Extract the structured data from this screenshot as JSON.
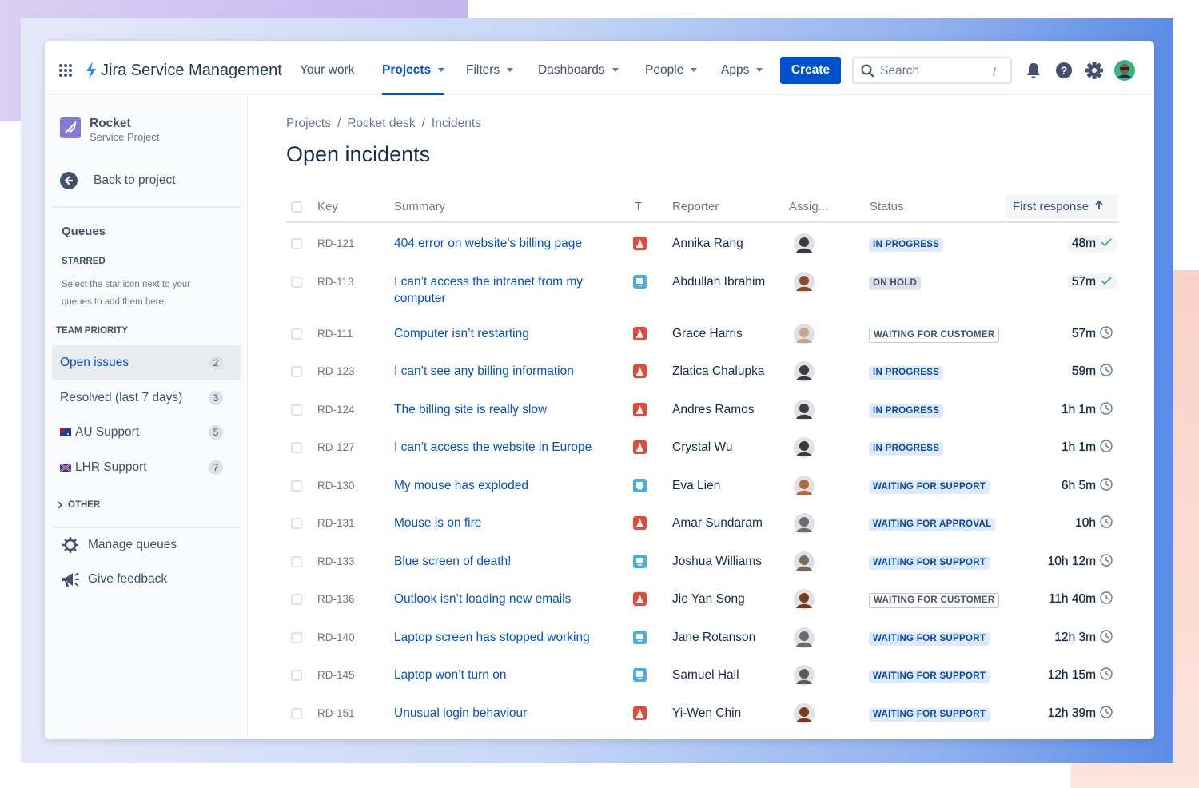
{
  "nav": {
    "product": "Jira Service Management",
    "items": [
      {
        "label": "Your work",
        "dropdown": false
      },
      {
        "label": "Projects",
        "dropdown": true
      },
      {
        "label": "Filters",
        "dropdown": true
      },
      {
        "label": "Dashboards",
        "dropdown": true
      },
      {
        "label": "People",
        "dropdown": true
      },
      {
        "label": "Apps",
        "dropdown": true
      }
    ],
    "active_index": 1,
    "create": "Create",
    "search": "Search",
    "search_shortcut": "/"
  },
  "sidebar": {
    "project_name": "Rocket",
    "project_type": "Service Project",
    "back": "Back to project",
    "queues_title": "Queues",
    "starred_title": "STARRED",
    "starred_hint": "Select the star icon next to your queues to add them here.",
    "team_priority_title": "TEAM PRIORITY",
    "queues": [
      {
        "name": "Open issues",
        "count": 2,
        "flag": false
      },
      {
        "name": "Resolved (last 7 days)",
        "count": 3,
        "flag": false
      },
      {
        "name": "AU Support",
        "count": 5,
        "flag": true
      },
      {
        "name": "LHR Support",
        "count": 7,
        "flag": true
      }
    ],
    "selected_index": 0,
    "other_title": "OTHER",
    "manage": "Manage queues",
    "feedback": "Give feedback"
  },
  "breadcrumbs": [
    "Projects",
    "Rocket desk",
    "Incidents"
  ],
  "page_title": "Open incidents",
  "table": {
    "columns": [
      "Key",
      "Summary",
      "T",
      "Reporter",
      "Assig...",
      "Status",
      "First response"
    ],
    "rows": [
      {
        "key": "RD-121",
        "summary": "404 error on website’s billing page",
        "type_color": "#e5493a",
        "reporter": "Annika Rang",
        "status": "IN PROGRESS",
        "status_colors": [
          "#deebff",
          "#0747a6"
        ],
        "first_response": "48m",
        "met": true
      },
      {
        "key": "RD-113",
        "summary": "I can’t access the intranet from my computer",
        "type_color": "#4bade8",
        "reporter": "Abdullah Ibrahim",
        "status": "ON HOLD",
        "status_colors": [
          "#dfe1e6",
          "#42526e"
        ],
        "first_response": "57m",
        "met": true
      },
      {
        "key": "RD-111",
        "summary": "Computer isn’t restarting",
        "type_color": "#e5493a",
        "reporter": "Grace Harris",
        "status": "WAITING FOR CUSTOMER",
        "status_colors": [
          "#ffffff",
          "#42526e"
        ],
        "first_response": "57m",
        "met": false
      },
      {
        "key": "RD-123",
        "summary": "I can’t see any billing information",
        "type_color": "#e5493a",
        "reporter": "Zlatica Chalupka",
        "status": "IN PROGRESS",
        "status_colors": [
          "#deebff",
          "#0747a6"
        ],
        "first_response": "59m",
        "met": false
      },
      {
        "key": "RD-124",
        "summary": "The billing site is really slow",
        "type_color": "#e5493a",
        "reporter": "Andres Ramos",
        "status": "IN PROGRESS",
        "status_colors": [
          "#deebff",
          "#0747a6"
        ],
        "first_response": "1h 1m",
        "met": false
      },
      {
        "key": "RD-127",
        "summary": "I can’t access the website in Europe",
        "type_color": "#e5493a",
        "reporter": "Crystal Wu",
        "status": "IN PROGRESS",
        "status_colors": [
          "#deebff",
          "#0747a6"
        ],
        "first_response": "1h 1m",
        "met": false
      },
      {
        "key": "RD-130",
        "summary": "My mouse has exploded",
        "type_color": "#4bade8",
        "reporter": "Eva Lien",
        "status": "WAITING FOR SUPPORT",
        "status_colors": [
          "#deebff",
          "#0747a6"
        ],
        "first_response": "6h 5m",
        "met": false
      },
      {
        "key": "RD-131",
        "summary": "Mouse is on fire",
        "type_color": "#e5493a",
        "reporter": "Amar Sundaram",
        "status": "WAITING FOR APPROVAL",
        "status_colors": [
          "#deebff",
          "#0747a6"
        ],
        "first_response": "10h",
        "met": false
      },
      {
        "key": "RD-133",
        "summary": "Blue screen of death!",
        "type_color": "#4bade8",
        "reporter": "Joshua Williams",
        "status": "WAITING FOR SUPPORT",
        "status_colors": [
          "#deebff",
          "#0747a6"
        ],
        "first_response": "10h 12m",
        "met": false
      },
      {
        "key": "RD-136",
        "summary": "Outlook isn’t loading new emails",
        "type_color": "#e5493a",
        "reporter": "Jie Yan Song",
        "status": "WAITING FOR CUSTOMER",
        "status_colors": [
          "#ffffff",
          "#42526e"
        ],
        "first_response": "11h 40m",
        "met": false
      },
      {
        "key": "RD-140",
        "summary": "Laptop screen has stopped working",
        "type_color": "#4bade8",
        "reporter": "Jane Rotanson",
        "status": "WAITING FOR SUPPORT",
        "status_colors": [
          "#deebff",
          "#0747a6"
        ],
        "first_response": "12h 3m",
        "met": false
      },
      {
        "key": "RD-145",
        "summary": "Laptop won’t turn on",
        "type_color": "#4bade8",
        "reporter": "Samuel Hall",
        "status": "WAITING FOR SUPPORT",
        "status_colors": [
          "#deebff",
          "#0747a6"
        ],
        "first_response": "12h 15m",
        "met": false
      },
      {
        "key": "RD-151",
        "summary": "Unusual login behaviour",
        "type_color": "#e5493a",
        "reporter": "Yi-Wen Chin",
        "status": "WAITING FOR SUPPORT",
        "status_colors": [
          "#deebff",
          "#0747a6"
        ],
        "first_response": "12h 39m",
        "met": false
      }
    ]
  }
}
